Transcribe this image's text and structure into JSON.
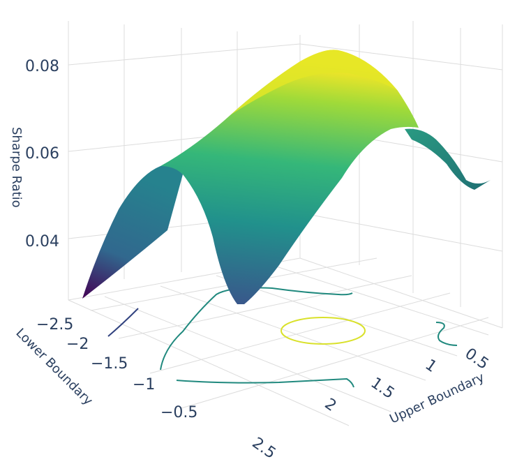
{
  "chart_data": {
    "type": "surface",
    "title": "",
    "xlabel": "Upper Boundary",
    "ylabel": "Lower Boundary",
    "zlabel": "Sharpe Ratio",
    "x_ticks": [
      "0.5",
      "1",
      "1.5",
      "2"
    ],
    "y_ticks": [
      "−2.5",
      "−2",
      "−1.5",
      "−1",
      "−0.5"
    ],
    "y_ticks_far": [
      "2.5"
    ],
    "z_ticks": [
      "0.08",
      "0.06",
      "0.04"
    ],
    "zlim": [
      0.025,
      0.085
    ],
    "peak": {
      "upper_boundary": 1.3,
      "sharpe_ratio": 0.084
    },
    "colorscale": "viridis",
    "colors": [
      "#440154",
      "#3b528b",
      "#21918c",
      "#5ec962",
      "#fde725"
    ],
    "contours": "projected on floor",
    "grid": true
  }
}
